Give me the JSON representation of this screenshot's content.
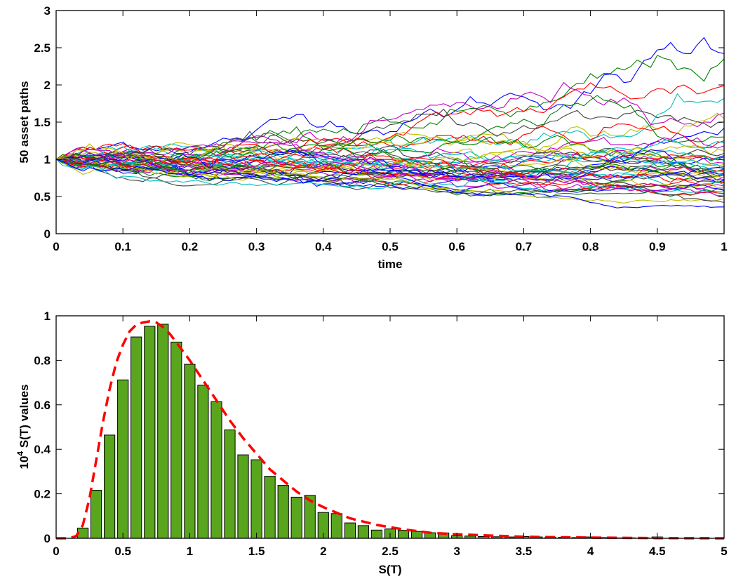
{
  "chart_data": [
    {
      "type": "line",
      "xlabel": "time",
      "ylabel": "50 asset paths",
      "xlim": [
        0,
        1
      ],
      "ylim": [
        0,
        3
      ],
      "xticks": [
        "0",
        "0.1",
        "0.2",
        "0.3",
        "0.4",
        "0.5",
        "0.6",
        "0.7",
        "0.8",
        "0.9",
        "1"
      ],
      "yticks": [
        "0",
        "0.5",
        "1",
        "1.5",
        "2",
        "2.5",
        "3"
      ],
      "grid": false,
      "n_paths": 50,
      "n_steps": 100,
      "start_value": 1,
      "colors": [
        "#0000ff",
        "#008000",
        "#ff0000",
        "#00bfbf",
        "#bf00bf",
        "#bfbf00",
        "#404040"
      ],
      "end_values": [
        2.42,
        2.35,
        1.99,
        1.82,
        1.62,
        1.55,
        1.5,
        1.42,
        1.3,
        1.25,
        1.22,
        1.18,
        1.12,
        1.08,
        1.05,
        1.03,
        1.0,
        0.98,
        0.95,
        0.93,
        0.9,
        0.88,
        0.87,
        0.86,
        0.85,
        0.84,
        0.83,
        0.82,
        0.8,
        0.79,
        0.78,
        0.77,
        0.76,
        0.75,
        0.73,
        0.72,
        0.7,
        0.68,
        0.66,
        0.64,
        0.62,
        0.6,
        0.58,
        0.56,
        0.54,
        0.52,
        0.5,
        0.47,
        0.42,
        0.36
      ]
    },
    {
      "type": "bar",
      "xlabel": "S(T)",
      "ylabel_prefix": "10",
      "ylabel_exp": "4",
      "ylabel_suffix": " S(T) values",
      "xlim": [
        0,
        5
      ],
      "ylim": [
        0,
        1
      ],
      "xticks": [
        "0",
        "0.5",
        "1",
        "1.5",
        "2",
        "2.5",
        "3",
        "3.5",
        "4",
        "4.5",
        "5"
      ],
      "yticks": [
        "0",
        "0.2",
        "0.4",
        "0.6",
        "0.8",
        "1"
      ],
      "bar_color": "#5aa51e",
      "bar_centers": [
        0.2,
        0.3,
        0.4,
        0.5,
        0.6,
        0.7,
        0.8,
        0.9,
        1.0,
        1.1,
        1.2,
        1.3,
        1.4,
        1.5,
        1.6,
        1.7,
        1.8,
        1.9,
        2.0,
        2.1,
        2.2,
        2.3,
        2.4,
        2.5,
        2.6,
        2.7,
        2.8,
        2.9,
        3.0,
        3.1,
        3.2,
        3.3,
        3.4,
        3.5,
        3.6,
        3.7,
        3.8,
        3.9,
        4.0,
        4.1,
        4.2,
        4.3,
        4.4,
        4.5
      ],
      "bar_values": [
        0.046,
        0.216,
        0.464,
        0.712,
        0.905,
        0.953,
        0.962,
        0.882,
        0.782,
        0.688,
        0.614,
        0.487,
        0.375,
        0.353,
        0.279,
        0.238,
        0.185,
        0.193,
        0.116,
        0.111,
        0.069,
        0.057,
        0.037,
        0.042,
        0.036,
        0.031,
        0.025,
        0.024,
        0.012,
        0.01,
        0.008,
        0.007,
        0.006,
        0.008,
        0.006,
        0.005,
        0.004,
        0.003,
        0.006,
        0.003,
        0.002,
        0.002,
        0.002,
        0.006
      ],
      "density_x": [
        0.0,
        0.1,
        0.15,
        0.2,
        0.25,
        0.3,
        0.35,
        0.4,
        0.45,
        0.5,
        0.55,
        0.6,
        0.65,
        0.7,
        0.75,
        0.8,
        0.85,
        0.9,
        0.95,
        1.0,
        1.1,
        1.2,
        1.3,
        1.4,
        1.5,
        1.6,
        1.7,
        1.8,
        1.9,
        2.0,
        2.2,
        2.4,
        2.6,
        2.8,
        3.0,
        3.5,
        4.0,
        4.5,
        5.0
      ],
      "density_y": [
        0.0,
        0.0,
        0.01,
        0.06,
        0.18,
        0.35,
        0.52,
        0.67,
        0.79,
        0.87,
        0.93,
        0.96,
        0.97,
        0.975,
        0.97,
        0.95,
        0.92,
        0.88,
        0.84,
        0.8,
        0.71,
        0.62,
        0.53,
        0.45,
        0.38,
        0.31,
        0.26,
        0.21,
        0.17,
        0.14,
        0.09,
        0.06,
        0.04,
        0.025,
        0.018,
        0.007,
        0.003,
        0.001,
        0.0
      ],
      "density_color": "#ff0000"
    }
  ]
}
